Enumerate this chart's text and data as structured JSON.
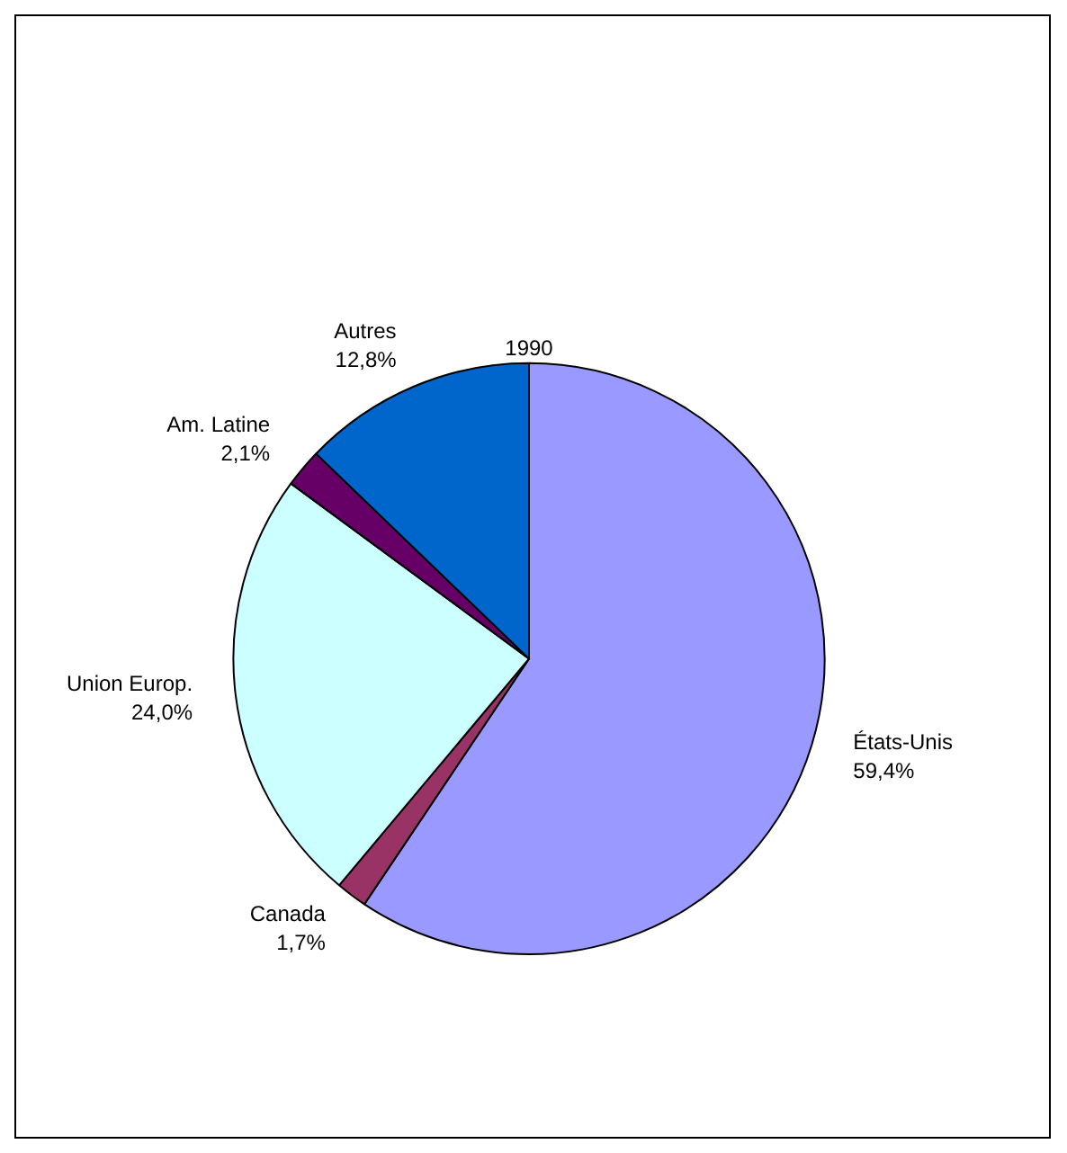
{
  "chart_data": {
    "type": "pie",
    "title": "1990",
    "categories": [
      "États-Unis",
      "Canada",
      "Union Europ.",
      "Am. Latine",
      "Autres"
    ],
    "values": [
      59.4,
      1.7,
      24.0,
      2.1,
      12.8
    ],
    "value_labels": [
      "59,4%",
      "1,7%",
      "24,0%",
      "2,1%",
      "12,8%"
    ],
    "colors": [
      "#9999ff",
      "#993366",
      "#ccffff",
      "#660066",
      "#0066cc"
    ],
    "legend": false
  }
}
